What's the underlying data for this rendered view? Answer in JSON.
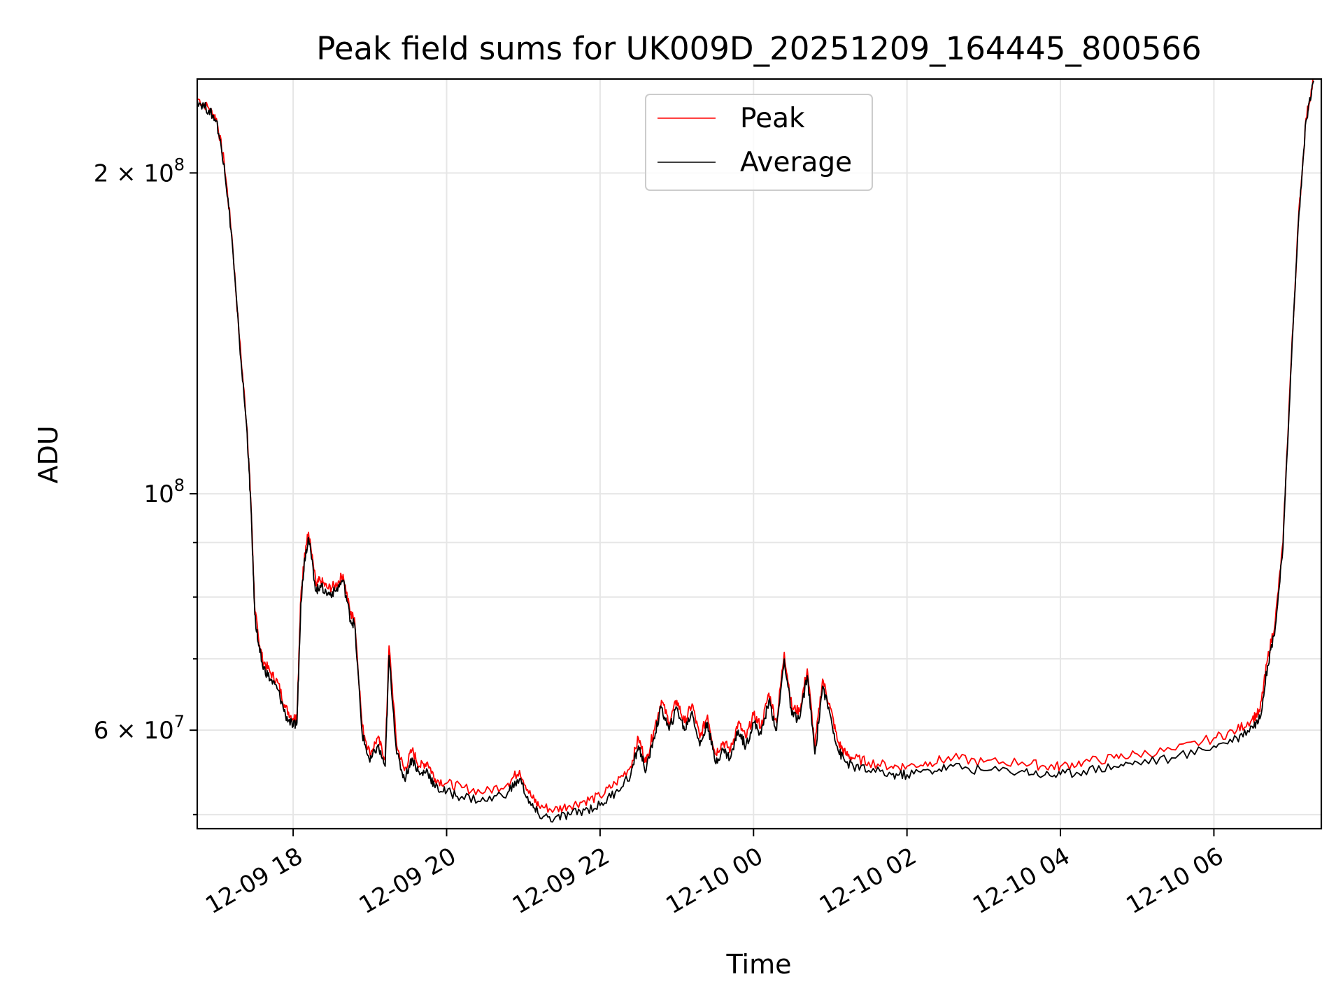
{
  "chart_data": {
    "type": "line",
    "title": "Peak field sums for UK009D_20251209_164445_800566",
    "xlabel": "Time",
    "ylabel": "ADU",
    "x_unit": "hours (time of day, continuing past midnight as 24, 25, ...)",
    "xlim": [
      16.75,
      31.4
    ],
    "ylim": [
      48500000,
      245000000
    ],
    "yscale": "log",
    "grid": true,
    "legend_position": "upper center",
    "x_ticks": [
      {
        "value": 18,
        "label": "12-09 18"
      },
      {
        "value": 20,
        "label": "12-09 20"
      },
      {
        "value": 22,
        "label": "12-09 22"
      },
      {
        "value": 24,
        "label": "12-10 00"
      },
      {
        "value": 26,
        "label": "12-10 02"
      },
      {
        "value": 28,
        "label": "12-10 04"
      },
      {
        "value": 30,
        "label": "12-10 06"
      }
    ],
    "y_major_ticks": [
      {
        "value": 60000000,
        "mant": "6",
        "exp": "7"
      },
      {
        "value": 100000000,
        "mant": "",
        "exp": "8"
      },
      {
        "value": 200000000,
        "mant": "2",
        "exp": "8"
      }
    ],
    "y_minor_ticks": [
      50000000,
      70000000,
      80000000,
      90000000,
      300000000
    ],
    "series": [
      {
        "name": "Peak",
        "color": "#ff0000",
        "x": [
          16.75,
          16.9,
          17.0,
          17.1,
          17.2,
          17.3,
          17.4,
          17.45,
          17.5,
          17.55,
          17.6,
          17.7,
          17.8,
          17.9,
          18.0,
          18.05,
          18.1,
          18.15,
          18.2,
          18.3,
          18.35,
          18.45,
          18.55,
          18.65,
          18.75,
          18.8,
          18.9,
          19.0,
          19.1,
          19.2,
          19.25,
          19.35,
          19.45,
          19.55,
          19.65,
          19.75,
          19.85,
          20.0,
          20.2,
          20.5,
          20.8,
          20.95,
          21.1,
          21.2,
          21.4,
          21.6,
          21.8,
          22.0,
          22.2,
          22.4,
          22.5,
          22.6,
          22.7,
          22.8,
          22.9,
          23.0,
          23.1,
          23.2,
          23.3,
          23.4,
          23.5,
          23.6,
          23.7,
          23.8,
          23.9,
          24.0,
          24.1,
          24.2,
          24.3,
          24.4,
          24.5,
          24.6,
          24.7,
          24.8,
          24.9,
          25.0,
          25.1,
          25.2,
          25.3,
          25.5,
          25.8,
          26.0,
          26.3,
          26.6,
          27.0,
          27.5,
          27.8,
          28.0,
          28.3,
          28.7,
          29.0,
          29.5,
          30.0,
          30.3,
          30.5,
          30.6,
          30.7,
          30.8,
          30.9,
          31.0,
          31.1,
          31.2,
          31.3
        ],
        "y": [
          235000000,
          230000000,
          225000000,
          205000000,
          175000000,
          140000000,
          115000000,
          98000000,
          78000000,
          73000000,
          70000000,
          68000000,
          66500000,
          63000000,
          61500000,
          62000000,
          80000000,
          88000000,
          92000000,
          82000000,
          83000000,
          81500000,
          82000000,
          84000000,
          77000000,
          76500000,
          60500000,
          57000000,
          59000000,
          56500000,
          72000000,
          58000000,
          55000000,
          57500000,
          55500000,
          56000000,
          54000000,
          53500000,
          53000000,
          52500000,
          53500000,
          55000000,
          52000000,
          51000000,
          50500000,
          51000000,
          51500000,
          52000000,
          53500000,
          55500000,
          59000000,
          56000000,
          60000000,
          64000000,
          61000000,
          64000000,
          61000000,
          63500000,
          59000000,
          62000000,
          57000000,
          58500000,
          57500000,
          61000000,
          59000000,
          62000000,
          60500000,
          65000000,
          61000000,
          71000000,
          63000000,
          62500000,
          68500000,
          58000000,
          67000000,
          63000000,
          58500000,
          57000000,
          56500000,
          56000000,
          55500000,
          55500000,
          56000000,
          56500000,
          56000000,
          56000000,
          55500000,
          55500000,
          56000000,
          56500000,
          57000000,
          57500000,
          59000000,
          60000000,
          61500000,
          62500000,
          70000000,
          76000000,
          90000000,
          130000000,
          180000000,
          225000000,
          245000000
        ]
      },
      {
        "name": "Average",
        "color": "#000000",
        "x": [
          16.75,
          16.9,
          17.0,
          17.1,
          17.2,
          17.3,
          17.4,
          17.45,
          17.5,
          17.55,
          17.6,
          17.7,
          17.8,
          17.9,
          18.0,
          18.05,
          18.1,
          18.15,
          18.2,
          18.3,
          18.35,
          18.45,
          18.55,
          18.65,
          18.75,
          18.8,
          18.9,
          19.0,
          19.1,
          19.2,
          19.25,
          19.35,
          19.45,
          19.55,
          19.65,
          19.75,
          19.85,
          20.0,
          20.2,
          20.5,
          20.8,
          20.95,
          21.1,
          21.2,
          21.4,
          21.6,
          21.8,
          22.0,
          22.2,
          22.4,
          22.5,
          22.6,
          22.7,
          22.8,
          22.9,
          23.0,
          23.1,
          23.2,
          23.3,
          23.4,
          23.5,
          23.6,
          23.7,
          23.8,
          23.9,
          24.0,
          24.1,
          24.2,
          24.3,
          24.4,
          24.5,
          24.6,
          24.7,
          24.8,
          24.9,
          25.0,
          25.1,
          25.2,
          25.3,
          25.5,
          25.8,
          26.0,
          26.3,
          26.6,
          27.0,
          27.5,
          27.8,
          28.0,
          28.3,
          28.7,
          29.0,
          29.5,
          30.0,
          30.3,
          30.5,
          30.6,
          30.7,
          30.8,
          30.9,
          31.0,
          31.1,
          31.2,
          31.3
        ],
        "y": [
          234000000,
          229000000,
          224000000,
          204000000,
          174000000,
          139000000,
          114000000,
          97000000,
          77000000,
          72000000,
          69000000,
          67000000,
          65500000,
          62000000,
          60500000,
          61000000,
          79000000,
          87000000,
          91000000,
          81000000,
          82000000,
          80500000,
          81000000,
          83000000,
          76000000,
          75500000,
          59500000,
          56000000,
          58000000,
          55500000,
          70500000,
          57000000,
          54000000,
          56500000,
          54500000,
          55000000,
          53000000,
          52500000,
          52000000,
          51500000,
          52500000,
          54000000,
          51000000,
          50000000,
          49500000,
          50000000,
          50500000,
          51000000,
          52500000,
          54500000,
          58000000,
          55000000,
          59000000,
          63000000,
          60000000,
          63000000,
          60000000,
          62500000,
          58000000,
          61000000,
          56000000,
          57500000,
          56500000,
          60000000,
          58000000,
          61000000,
          59500000,
          64000000,
          60000000,
          70000000,
          62000000,
          61500000,
          67500000,
          57000000,
          66000000,
          62000000,
          57500000,
          56000000,
          55500000,
          55000000,
          54500000,
          54500000,
          55000000,
          55500000,
          55000000,
          55000000,
          54500000,
          54500000,
          55000000,
          55500000,
          56000000,
          56500000,
          58000000,
          59000000,
          60500000,
          61500000,
          69000000,
          75000000,
          89000000,
          129000000,
          179000000,
          224000000,
          244000000
        ]
      }
    ]
  }
}
